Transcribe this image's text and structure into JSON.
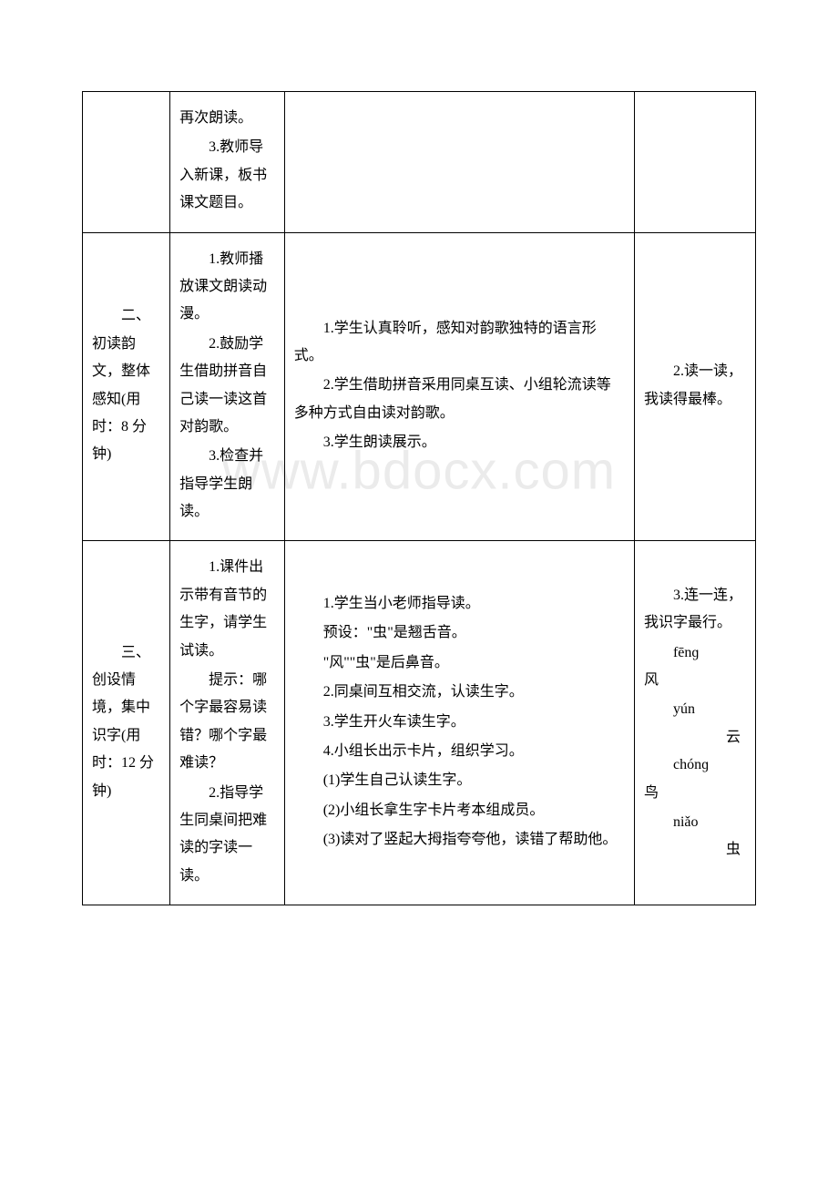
{
  "watermark": "www.bdocx.com",
  "table": {
    "rows": [
      {
        "col1": "",
        "col2": [
          "再次朗读。",
          "3.教师导入新课，板书课文题目。"
        ],
        "col3": [],
        "col4": []
      },
      {
        "col1": "二、初读韵文，整体感知(用时：8 分钟)",
        "col2": [
          "1.教师播放课文朗读动漫。",
          "2.鼓励学生借助拼音自己读一读这首对韵歌。",
          "3.检查并指导学生朗读。"
        ],
        "col3": [
          "1.学生认真聆听，感知对韵歌独特的语言形式。",
          "2.学生借助拼音采用同桌互读、小组轮流读等多种方式自由读对韵歌。",
          "3.学生朗读展示。"
        ],
        "col4": [
          "2.读一读，我读得最棒。"
        ]
      },
      {
        "col1": "三、创设情境，集中识字(用时：12 分钟)",
        "col2": [
          "1.课件出示带有音节的生字，请学生试读。",
          "提示：哪个字最容易读错？哪个字最难读？",
          "2.指导学生同桌间把难读的字读一读。"
        ],
        "col3": [
          "1.学生当小老师指导读。",
          "预设：\"虫\"是翘舌音。",
          "\"风\"\"虫\"是后鼻音。",
          "2.同桌间互相交流，认读生字。",
          "3.学生开火车读生字。",
          "4.小组长出示卡片，组织学习。",
          "(1)学生自己认读生字。",
          "(2)小组长拿生字卡片考本组成员。",
          "(3)读对了竖起大拇指夸夸他，读错了帮助他。"
        ],
        "col4": {
          "intro": "3.连一连，我识字最行。",
          "pairs": [
            {
              "pinyin": "fēnɡ",
              "hanzi": "风"
            },
            {
              "pinyin": "yún",
              "hanzi": "云"
            },
            {
              "pinyin": "chónɡ",
              "hanzi": "鸟"
            },
            {
              "pinyin": "niǎo",
              "hanzi": "虫"
            }
          ]
        }
      }
    ]
  }
}
